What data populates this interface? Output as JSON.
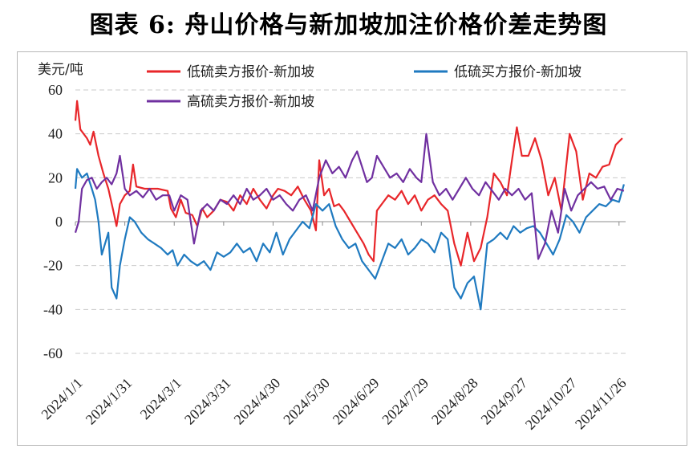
{
  "title": "图表 6:  舟山价格与新加坡加注价格价差走势图",
  "chart_data": {
    "type": "line",
    "ylabel": "美元/吨",
    "ylim": [
      -60,
      60
    ],
    "yticks": [
      -60,
      -40,
      -20,
      0,
      20,
      40,
      60
    ],
    "x_range": [
      "2024/1/1",
      "2024/11/30"
    ],
    "xticks": [
      "2024/1/1",
      "2024/1/31",
      "2024/3/1",
      "2024/3/31",
      "2024/4/30",
      "2024/5/30",
      "2024/6/29",
      "2024/7/29",
      "2024/8/28",
      "2024/9/27",
      "2024/10/27",
      "2024/11/26"
    ],
    "grid": "horizontal-dashed",
    "legend_position": "top",
    "series": [
      {
        "name": "低硫卖方报价-新加坡",
        "color": "#e8262a",
        "points": [
          [
            "2024/1/1",
            46
          ],
          [
            "2024/1/2",
            55
          ],
          [
            "2024/1/4",
            42
          ],
          [
            "2024/1/8",
            38
          ],
          [
            "2024/1/10",
            35
          ],
          [
            "2024/1/12",
            41
          ],
          [
            "2024/1/15",
            30
          ],
          [
            "2024/1/18",
            22
          ],
          [
            "2024/1/21",
            15
          ],
          [
            "2024/1/24",
            5
          ],
          [
            "2024/1/26",
            -2
          ],
          [
            "2024/1/28",
            8
          ],
          [
            "2024/1/31",
            12
          ],
          [
            "2024/2/3",
            14
          ],
          [
            "2024/2/5",
            26
          ],
          [
            "2024/2/7",
            16
          ],
          [
            "2024/2/12",
            15
          ],
          [
            "2024/2/20",
            15
          ],
          [
            "2024/2/26",
            14
          ],
          [
            "2024/2/28",
            6
          ],
          [
            "2024/3/2",
            2
          ],
          [
            "2024/3/5",
            10
          ],
          [
            "2024/3/8",
            4
          ],
          [
            "2024/3/12",
            3
          ],
          [
            "2024/3/15",
            -2
          ],
          [
            "2024/3/18",
            6
          ],
          [
            "2024/3/21",
            2
          ],
          [
            "2024/3/25",
            5
          ],
          [
            "2024/3/29",
            10
          ],
          [
            "2024/4/2",
            9
          ],
          [
            "2024/4/6",
            5
          ],
          [
            "2024/4/10",
            12
          ],
          [
            "2024/4/14",
            8
          ],
          [
            "2024/4/18",
            15
          ],
          [
            "2024/4/22",
            10
          ],
          [
            "2024/4/26",
            6
          ],
          [
            "2024/4/30",
            12
          ],
          [
            "2024/5/3",
            15
          ],
          [
            "2024/5/7",
            14
          ],
          [
            "2024/5/11",
            12
          ],
          [
            "2024/5/15",
            16
          ],
          [
            "2024/5/19",
            10
          ],
          [
            "2024/5/23",
            5
          ],
          [
            "2024/5/26",
            -4
          ],
          [
            "2024/5/28",
            28
          ],
          [
            "2024/5/31",
            12
          ],
          [
            "2024/6/3",
            15
          ],
          [
            "2024/6/6",
            7
          ],
          [
            "2024/6/9",
            8
          ],
          [
            "2024/6/12",
            5
          ],
          [
            "2024/6/16",
            0
          ],
          [
            "2024/6/20",
            -5
          ],
          [
            "2024/6/24",
            -10
          ],
          [
            "2024/6/27",
            -15
          ],
          [
            "2024/6/30",
            -18
          ],
          [
            "2024/7/2",
            5
          ],
          [
            "2024/7/5",
            8
          ],
          [
            "2024/7/9",
            12
          ],
          [
            "2024/7/13",
            10
          ],
          [
            "2024/7/17",
            14
          ],
          [
            "2024/7/21",
            8
          ],
          [
            "2024/7/25",
            12
          ],
          [
            "2024/7/29",
            5
          ],
          [
            "2024/8/2",
            10
          ],
          [
            "2024/8/6",
            12
          ],
          [
            "2024/8/10",
            8
          ],
          [
            "2024/8/14",
            5
          ],
          [
            "2024/8/18",
            -10
          ],
          [
            "2024/8/22",
            -20
          ],
          [
            "2024/8/26",
            -5
          ],
          [
            "2024/8/30",
            -18
          ],
          [
            "2024/9/3",
            -12
          ],
          [
            "2024/9/7",
            2
          ],
          [
            "2024/9/11",
            22
          ],
          [
            "2024/9/15",
            18
          ],
          [
            "2024/9/19",
            12
          ],
          [
            "2024/9/22",
            28
          ],
          [
            "2024/9/25",
            43
          ],
          [
            "2024/9/28",
            30
          ],
          [
            "2024/10/2",
            30
          ],
          [
            "2024/10/6",
            38
          ],
          [
            "2024/10/10",
            28
          ],
          [
            "2024/10/14",
            12
          ],
          [
            "2024/10/18",
            20
          ],
          [
            "2024/10/22",
            5
          ],
          [
            "2024/10/27",
            40
          ],
          [
            "2024/10/31",
            32
          ],
          [
            "2024/11/4",
            10
          ],
          [
            "2024/11/8",
            22
          ],
          [
            "2024/11/12",
            20
          ],
          [
            "2024/11/16",
            25
          ],
          [
            "2024/11/20",
            26
          ],
          [
            "2024/11/24",
            35
          ],
          [
            "2024/11/28",
            38
          ]
        ]
      },
      {
        "name": "低硫买方报价-新加坡",
        "color": "#1f7ac0",
        "points": [
          [
            "2024/1/1",
            15
          ],
          [
            "2024/1/2",
            24
          ],
          [
            "2024/1/5",
            20
          ],
          [
            "2024/1/8",
            22
          ],
          [
            "2024/1/11",
            15
          ],
          [
            "2024/1/13",
            10
          ],
          [
            "2024/1/15",
            0
          ],
          [
            "2024/1/17",
            -15
          ],
          [
            "2024/1/19",
            -10
          ],
          [
            "2024/1/21",
            -5
          ],
          [
            "2024/1/23",
            -30
          ],
          [
            "2024/1/26",
            -35
          ],
          [
            "2024/1/28",
            -20
          ],
          [
            "2024/1/31",
            -8
          ],
          [
            "2024/2/3",
            2
          ],
          [
            "2024/2/6",
            0
          ],
          [
            "2024/2/10",
            -5
          ],
          [
            "2024/2/14",
            -8
          ],
          [
            "2024/2/18",
            -10
          ],
          [
            "2024/2/22",
            -12
          ],
          [
            "2024/2/26",
            -15
          ],
          [
            "2024/2/29",
            -13
          ],
          [
            "2024/3/3",
            -20
          ],
          [
            "2024/3/7",
            -15
          ],
          [
            "2024/3/11",
            -18
          ],
          [
            "2024/3/15",
            -20
          ],
          [
            "2024/3/19",
            -18
          ],
          [
            "2024/3/23",
            -22
          ],
          [
            "2024/3/27",
            -14
          ],
          [
            "2024/3/31",
            -16
          ],
          [
            "2024/4/4",
            -14
          ],
          [
            "2024/4/8",
            -10
          ],
          [
            "2024/4/12",
            -14
          ],
          [
            "2024/4/16",
            -12
          ],
          [
            "2024/4/20",
            -18
          ],
          [
            "2024/4/24",
            -10
          ],
          [
            "2024/4/28",
            -14
          ],
          [
            "2024/5/2",
            -5
          ],
          [
            "2024/5/6",
            -15
          ],
          [
            "2024/5/10",
            -8
          ],
          [
            "2024/5/14",
            -4
          ],
          [
            "2024/5/18",
            0
          ],
          [
            "2024/5/22",
            -3
          ],
          [
            "2024/5/26",
            8
          ],
          [
            "2024/5/30",
            5
          ],
          [
            "2024/6/3",
            8
          ],
          [
            "2024/6/7",
            -2
          ],
          [
            "2024/6/11",
            -8
          ],
          [
            "2024/6/15",
            -12
          ],
          [
            "2024/6/19",
            -10
          ],
          [
            "2024/6/23",
            -18
          ],
          [
            "2024/6/27",
            -22
          ],
          [
            "2024/7/1",
            -26
          ],
          [
            "2024/7/5",
            -18
          ],
          [
            "2024/7/9",
            -10
          ],
          [
            "2024/7/13",
            -12
          ],
          [
            "2024/7/17",
            -8
          ],
          [
            "2024/7/21",
            -15
          ],
          [
            "2024/7/25",
            -12
          ],
          [
            "2024/7/29",
            -8
          ],
          [
            "2024/8/2",
            -10
          ],
          [
            "2024/8/6",
            -14
          ],
          [
            "2024/8/10",
            -5
          ],
          [
            "2024/8/14",
            -8
          ],
          [
            "2024/8/18",
            -30
          ],
          [
            "2024/8/22",
            -35
          ],
          [
            "2024/8/26",
            -28
          ],
          [
            "2024/8/30",
            -25
          ],
          [
            "2024/9/3",
            -40
          ],
          [
            "2024/9/7",
            -10
          ],
          [
            "2024/9/11",
            -8
          ],
          [
            "2024/9/15",
            -5
          ],
          [
            "2024/9/19",
            -8
          ],
          [
            "2024/9/23",
            -2
          ],
          [
            "2024/9/27",
            -5
          ],
          [
            "2024/10/1",
            -3
          ],
          [
            "2024/10/5",
            -2
          ],
          [
            "2024/10/9",
            -5
          ],
          [
            "2024/10/13",
            -10
          ],
          [
            "2024/10/17",
            -15
          ],
          [
            "2024/10/21",
            -8
          ],
          [
            "2024/10/25",
            3
          ],
          [
            "2024/10/29",
            0
          ],
          [
            "2024/11/2",
            -5
          ],
          [
            "2024/11/6",
            2
          ],
          [
            "2024/11/10",
            5
          ],
          [
            "2024/11/14",
            8
          ],
          [
            "2024/11/18",
            7
          ],
          [
            "2024/11/22",
            10
          ],
          [
            "2024/11/26",
            9
          ],
          [
            "2024/11/29",
            17
          ]
        ]
      },
      {
        "name": "高硫卖方报价-新加坡",
        "color": "#7030a0",
        "points": [
          [
            "2024/1/1",
            -5
          ],
          [
            "2024/1/3",
            0
          ],
          [
            "2024/1/5",
            15
          ],
          [
            "2024/1/8",
            19
          ],
          [
            "2024/1/11",
            20
          ],
          [
            "2024/1/14",
            15
          ],
          [
            "2024/1/17",
            18
          ],
          [
            "2024/1/20",
            20
          ],
          [
            "2024/1/23",
            17
          ],
          [
            "2024/1/26",
            22
          ],
          [
            "2024/1/28",
            30
          ],
          [
            "2024/1/31",
            15
          ],
          [
            "2024/2/3",
            12
          ],
          [
            "2024/2/7",
            14
          ],
          [
            "2024/2/11",
            11
          ],
          [
            "2024/2/15",
            15
          ],
          [
            "2024/2/19",
            10
          ],
          [
            "2024/2/23",
            12
          ],
          [
            "2024/2/27",
            12
          ],
          [
            "2024/3/1",
            5
          ],
          [
            "2024/3/5",
            12
          ],
          [
            "2024/3/9",
            10
          ],
          [
            "2024/3/13",
            -10
          ],
          [
            "2024/3/17",
            5
          ],
          [
            "2024/3/21",
            8
          ],
          [
            "2024/3/25",
            5
          ],
          [
            "2024/3/29",
            10
          ],
          [
            "2024/4/2",
            8
          ],
          [
            "2024/4/6",
            12
          ],
          [
            "2024/4/10",
            8
          ],
          [
            "2024/4/14",
            15
          ],
          [
            "2024/4/18",
            10
          ],
          [
            "2024/4/22",
            12
          ],
          [
            "2024/4/26",
            15
          ],
          [
            "2024/4/30",
            10
          ],
          [
            "2024/5/4",
            12
          ],
          [
            "2024/5/8",
            8
          ],
          [
            "2024/5/12",
            5
          ],
          [
            "2024/5/16",
            10
          ],
          [
            "2024/5/20",
            12
          ],
          [
            "2024/5/24",
            5
          ],
          [
            "2024/5/28",
            20
          ],
          [
            "2024/6/1",
            28
          ],
          [
            "2024/6/5",
            22
          ],
          [
            "2024/6/9",
            25
          ],
          [
            "2024/6/13",
            20
          ],
          [
            "2024/6/17",
            28
          ],
          [
            "2024/6/20",
            32
          ],
          [
            "2024/6/23",
            25
          ],
          [
            "2024/6/26",
            18
          ],
          [
            "2024/6/29",
            20
          ],
          [
            "2024/7/2",
            30
          ],
          [
            "2024/7/6",
            25
          ],
          [
            "2024/7/10",
            20
          ],
          [
            "2024/7/14",
            22
          ],
          [
            "2024/7/18",
            18
          ],
          [
            "2024/7/22",
            24
          ],
          [
            "2024/7/26",
            20
          ],
          [
            "2024/7/29",
            18
          ],
          [
            "2024/8/1",
            40
          ],
          [
            "2024/8/5",
            18
          ],
          [
            "2024/8/9",
            12
          ],
          [
            "2024/8/13",
            15
          ],
          [
            "2024/8/17",
            10
          ],
          [
            "2024/8/21",
            15
          ],
          [
            "2024/8/25",
            20
          ],
          [
            "2024/8/29",
            15
          ],
          [
            "2024/9/2",
            12
          ],
          [
            "2024/9/6",
            18
          ],
          [
            "2024/9/10",
            14
          ],
          [
            "2024/9/14",
            10
          ],
          [
            "2024/9/18",
            15
          ],
          [
            "2024/9/22",
            12
          ],
          [
            "2024/9/26",
            15
          ],
          [
            "2024/9/30",
            10
          ],
          [
            "2024/10/4",
            13
          ],
          [
            "2024/10/8",
            -17
          ],
          [
            "2024/10/12",
            -10
          ],
          [
            "2024/10/16",
            5
          ],
          [
            "2024/10/20",
            -5
          ],
          [
            "2024/10/24",
            15
          ],
          [
            "2024/10/28",
            5
          ],
          [
            "2024/11/1",
            12
          ],
          [
            "2024/11/5",
            15
          ],
          [
            "2024/11/9",
            18
          ],
          [
            "2024/11/13",
            15
          ],
          [
            "2024/11/17",
            16
          ],
          [
            "2024/11/21",
            10
          ],
          [
            "2024/11/25",
            15
          ],
          [
            "2024/11/29",
            14
          ]
        ]
      }
    ]
  }
}
